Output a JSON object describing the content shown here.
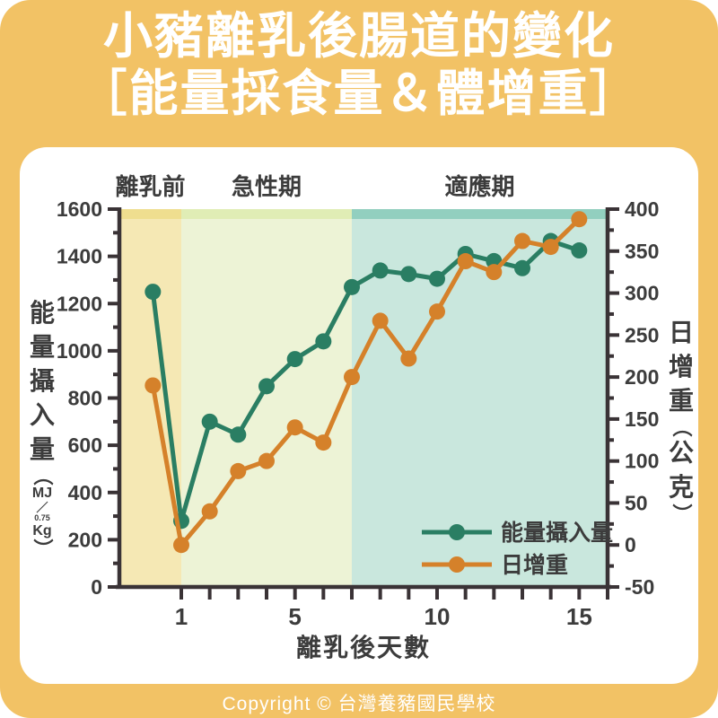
{
  "page": {
    "title_line1": "小豬離乳後腸道的變化",
    "title_line2": "［能量採食量＆體增重］",
    "footer": "Copyright © 台灣養豬國民學校"
  },
  "colors": {
    "background": "#F2C265",
    "card": "#FFFFFF",
    "axis": "#3A3336",
    "text": "#3C3C3C",
    "energy_series": "#2A7E63",
    "gain_series": "#D5812A"
  },
  "axis_labels": {
    "energy": {
      "chars": "能量攝入量",
      "open": "（",
      "num": "MJ",
      "slash": "／",
      "exp": "0.75",
      "base": "Kg",
      "close": "）"
    },
    "gain": {
      "chars": "日增重",
      "open": "（",
      "text": "公克",
      "close": "）"
    }
  },
  "chart_data": {
    "type": "line",
    "title": "小豬離乳後腸道的變化［能量採食量＆體增重］",
    "xlabel": "離乳後天數",
    "ylabel_left": "能量攝入量（MJ／Kg^0.75）",
    "ylabel_right": "日增重（公克）",
    "x": [
      0,
      1,
      2,
      3,
      4,
      5,
      6,
      7,
      8,
      9,
      10,
      11,
      12,
      13,
      14,
      15
    ],
    "xlim": [
      -1.2,
      16
    ],
    "xticks_all": [
      1,
      2,
      3,
      4,
      5,
      6,
      7,
      8,
      9,
      10,
      11,
      12,
      13,
      14,
      15,
      16
    ],
    "xticks_labeled": [
      1,
      5,
      10,
      15
    ],
    "ylim_left": [
      0,
      1600
    ],
    "yticks_left": [
      0,
      200,
      400,
      600,
      800,
      1000,
      1200,
      1400,
      1600
    ],
    "yticks_left_minor": [
      100,
      300,
      500,
      700,
      900,
      1100,
      1300,
      1500
    ],
    "ylim_right": [
      -50,
      400
    ],
    "yticks_right": [
      -50,
      0,
      50,
      100,
      150,
      200,
      250,
      300,
      350,
      400
    ],
    "yticks_right_minor": [
      -25,
      25,
      75,
      125,
      175,
      225,
      275,
      325,
      375
    ],
    "grid": false,
    "legend_position": "bottom-right",
    "series": [
      {
        "name": "能量攝入量",
        "axis": "left",
        "color": "#2A7E63",
        "values": [
          1250,
          280,
          700,
          645,
          850,
          965,
          1040,
          1270,
          1340,
          1325,
          1305,
          1410,
          1380,
          1350,
          1465,
          1425
        ]
      },
      {
        "name": "日增重",
        "axis": "right",
        "color": "#D5812A",
        "values": [
          190,
          0,
          40,
          88,
          100,
          140,
          122,
          200,
          267,
          222,
          278,
          338,
          325,
          362,
          355,
          388
        ]
      }
    ],
    "phases": [
      {
        "label": "離乳前",
        "from_day": -1.2,
        "to_day": 1,
        "color": "#F5E8B4",
        "top_color": "#EFDE8F"
      },
      {
        "label": "急性期",
        "from_day": 1,
        "to_day": 7,
        "color": "#EDF3D6",
        "top_color": "#E0EDB5"
      },
      {
        "label": "適應期",
        "from_day": 7,
        "to_day": 16,
        "color": "#C9E7DD",
        "top_color": "#92CFBF"
      }
    ]
  }
}
